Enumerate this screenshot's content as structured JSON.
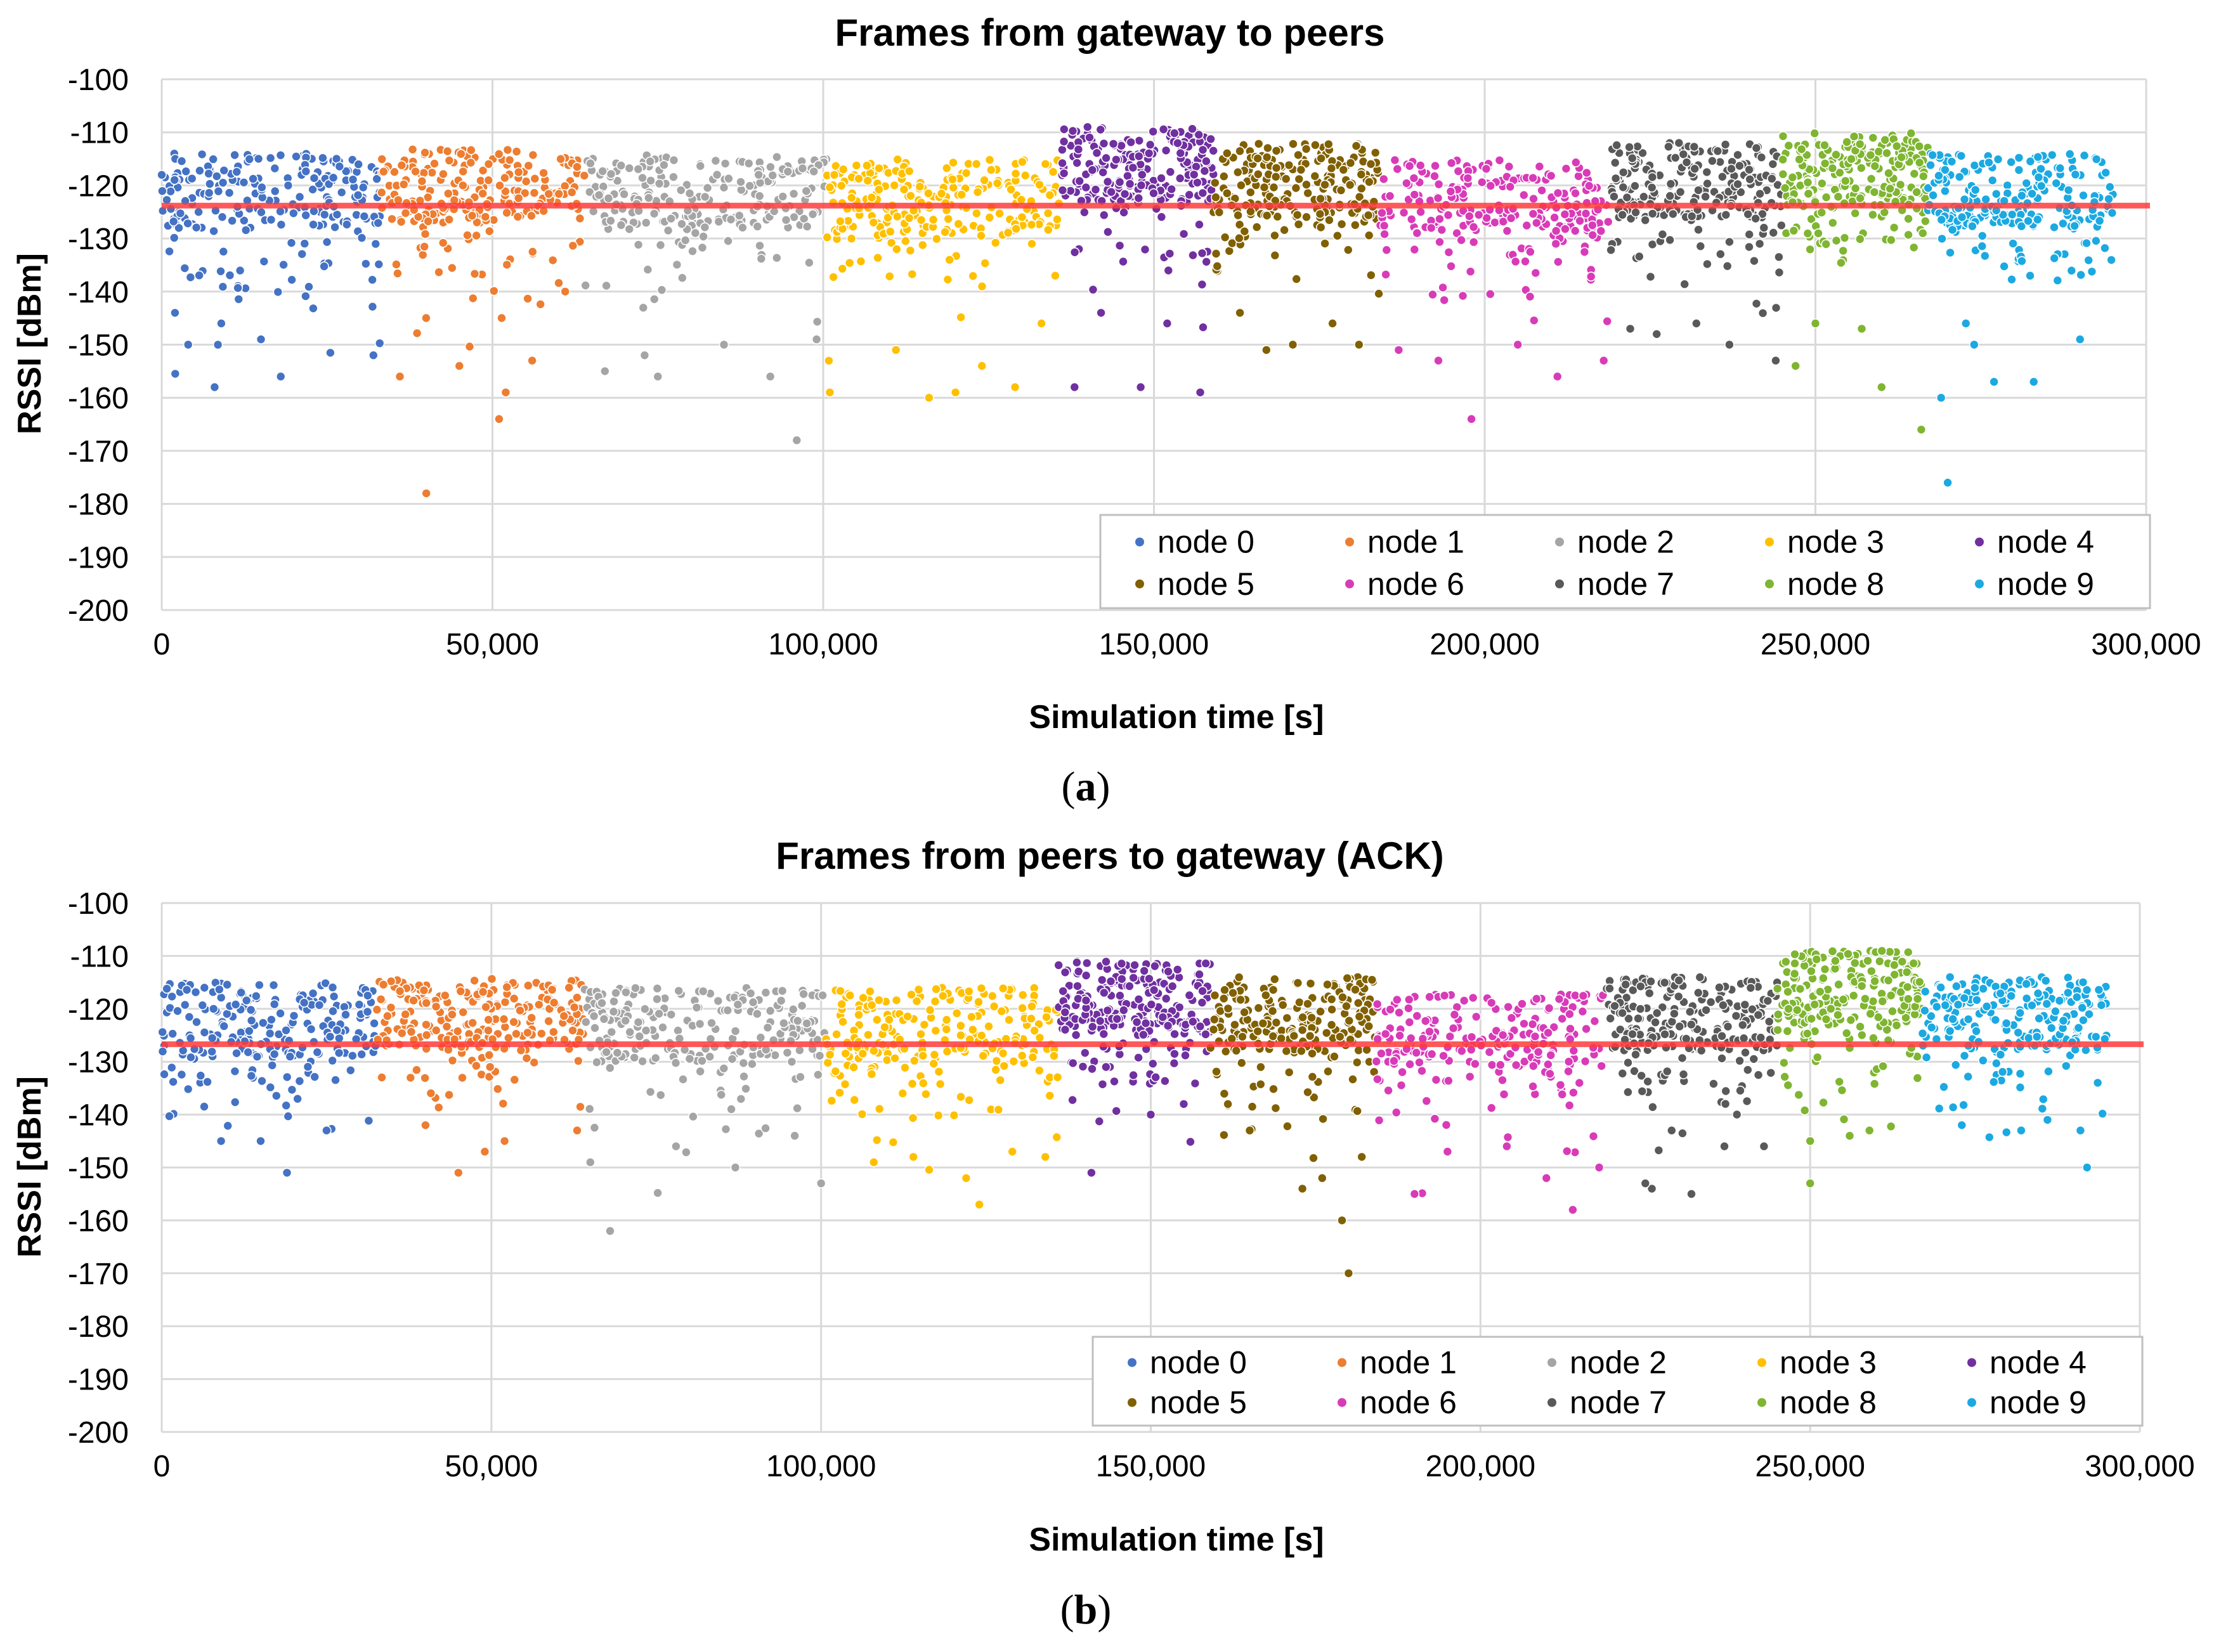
{
  "chart_data": [
    {
      "type": "scatter",
      "title": "Frames from gateway to peers",
      "xlabel": "Simulation time [s]",
      "ylabel": "RSSI [dBm]",
      "xlim": [
        0,
        300000
      ],
      "ylim": [
        -200,
        -100
      ],
      "xticks": [
        0,
        50000,
        100000,
        150000,
        200000,
        250000,
        300000
      ],
      "xtick_labels": [
        "0",
        "50,000",
        "100,000",
        "150,000",
        "200,000",
        "250,000",
        "300,000"
      ],
      "yticks": [
        -100,
        -110,
        -120,
        -130,
        -140,
        -150,
        -160,
        -170,
        -180,
        -190,
        -200
      ],
      "ytick_labels": [
        "-100",
        "-110",
        "-120",
        "-130",
        "-140",
        "-150",
        "-160",
        "-170",
        "-180",
        "-190",
        "-200"
      ],
      "grid": true,
      "legend_position": "bottom-right",
      "reference_line": {
        "y": -123.8,
        "color": "#ff3b3b"
      },
      "caption": "(a)",
      "caption_letter": "a",
      "series": [
        {
          "name": "node 0",
          "color": "#4472c4",
          "x_range": [
            0,
            33000
          ],
          "y_center": -121,
          "outliers": [
            [
              8000,
              -158
            ],
            [
              18000,
              -156
            ],
            [
              32000,
              -152
            ],
            [
              4000,
              -150
            ],
            [
              15000,
              -149
            ],
            [
              9000,
              -146
            ],
            [
              2000,
              -144
            ]
          ]
        },
        {
          "name": "node 1",
          "color": "#ed7d31",
          "x_range": [
            33000,
            64000
          ],
          "y_center": -120,
          "outliers": [
            [
              40000,
              -178
            ],
            [
              51000,
              -164
            ],
            [
              52000,
              -159
            ],
            [
              36000,
              -156
            ],
            [
              45000,
              -154
            ],
            [
              56000,
              -153
            ],
            [
              61000,
              -140
            ]
          ]
        },
        {
          "name": "node 2",
          "color": "#a5a5a5",
          "x_range": [
            64000,
            100500
          ],
          "y_center": -121,
          "outliers": [
            [
              96000,
              -168
            ],
            [
              67000,
              -155
            ],
            [
              75000,
              -156
            ],
            [
              92000,
              -156
            ],
            [
              73000,
              -152
            ],
            [
              85000,
              -150
            ],
            [
              99000,
              -149
            ]
          ]
        },
        {
          "name": "node 3",
          "color": "#ffc000",
          "x_range": [
            100500,
            136000
          ],
          "y_center": -122,
          "outliers": [
            [
              116000,
              -160
            ],
            [
              101000,
              -159
            ],
            [
              120000,
              -159
            ],
            [
              129000,
              -158
            ],
            [
              111000,
              -151
            ],
            [
              124000,
              -154
            ],
            [
              133000,
              -146
            ]
          ]
        },
        {
          "name": "node 4",
          "color": "#7030a0",
          "x_range": [
            136000,
            159000
          ],
          "y_center": -116,
          "outliers": [
            [
              157000,
              -159
            ],
            [
              138000,
              -158
            ],
            [
              148000,
              -158
            ],
            [
              152000,
              -146
            ],
            [
              142000,
              -144
            ]
          ]
        },
        {
          "name": "node 5",
          "color": "#806000",
          "x_range": [
            159000,
            184000
          ],
          "y_center": -119,
          "outliers": [
            [
              167000,
              -151
            ],
            [
              171000,
              -150
            ],
            [
              181000,
              -150
            ],
            [
              177000,
              -146
            ],
            [
              163000,
              -144
            ]
          ]
        },
        {
          "name": "node 6",
          "color": "#d83bb8",
          "x_range": [
            184000,
            219000
          ],
          "y_center": -122,
          "outliers": [
            [
              198000,
              -164
            ],
            [
              211000,
              -156
            ],
            [
              193000,
              -153
            ],
            [
              218000,
              -153
            ],
            [
              205000,
              -150
            ],
            [
              187000,
              -151
            ]
          ]
        },
        {
          "name": "node 7",
          "color": "#595959",
          "x_range": [
            219000,
            245000
          ],
          "y_center": -119,
          "outliers": [
            [
              244000,
              -153
            ],
            [
              226000,
              -148
            ],
            [
              237000,
              -150
            ],
            [
              232000,
              -146
            ],
            [
              222000,
              -147
            ]
          ]
        },
        {
          "name": "node 8",
          "color": "#7fb531",
          "x_range": [
            245000,
            267000
          ],
          "y_center": -117,
          "outliers": [
            [
              266000,
              -166
            ],
            [
              260000,
              -158
            ],
            [
              247000,
              -154
            ],
            [
              250000,
              -146
            ],
            [
              257000,
              -147
            ]
          ]
        },
        {
          "name": "node 9",
          "color": "#1ca9e1",
          "x_range": [
            267000,
            295000
          ],
          "y_center": -121,
          "outliers": [
            [
              270000,
              -176
            ],
            [
              269000,
              -160
            ],
            [
              277000,
              -157
            ],
            [
              283000,
              -157
            ],
            [
              290000,
              -149
            ],
            [
              274000,
              -150
            ]
          ]
        }
      ]
    },
    {
      "type": "scatter",
      "title": "Frames from peers to gateway (ACK)",
      "xlabel": "Simulation time [s]",
      "ylabel": "RSSI [dBm]",
      "xlim": [
        0,
        300000
      ],
      "ylim": [
        -200,
        -100
      ],
      "xticks": [
        0,
        50000,
        100000,
        150000,
        200000,
        250000,
        300000
      ],
      "xtick_labels": [
        "0",
        "50,000",
        "100,000",
        "150,000",
        "200,000",
        "250,000",
        "300,000"
      ],
      "yticks": [
        -100,
        -110,
        -120,
        -130,
        -140,
        -150,
        -160,
        -170,
        -180,
        -190,
        -200
      ],
      "ytick_labels": [
        "-100",
        "-110",
        "-120",
        "-130",
        "-140",
        "-150",
        "-160",
        "-170",
        "-180",
        "-190",
        "-200"
      ],
      "grid": true,
      "legend_position": "bottom-right",
      "reference_line": {
        "y": -126.7,
        "color": "#ff3b3b"
      },
      "caption": "(b)",
      "caption_letter": "b",
      "series": [
        {
          "name": "node 0",
          "color": "#4472c4",
          "x_range": [
            0,
            32500
          ],
          "y_center": -122,
          "outliers": [
            [
              19000,
              -151
            ],
            [
              9000,
              -145
            ],
            [
              15000,
              -145
            ],
            [
              25000,
              -143
            ]
          ]
        },
        {
          "name": "node 1",
          "color": "#ed7d31",
          "x_range": [
            32500,
            64000
          ],
          "y_center": -121,
          "outliers": [
            [
              45000,
              -151
            ],
            [
              49000,
              -147
            ],
            [
              52000,
              -145
            ],
            [
              63000,
              -143
            ],
            [
              40000,
              -142
            ]
          ]
        },
        {
          "name": "node 2",
          "color": "#a5a5a5",
          "x_range": [
            64000,
            100500
          ],
          "y_center": -123,
          "outliers": [
            [
              68000,
              -162
            ],
            [
              65000,
              -149
            ],
            [
              87000,
              -150
            ],
            [
              100000,
              -153
            ],
            [
              78000,
              -146
            ],
            [
              96000,
              -144
            ]
          ]
        },
        {
          "name": "node 3",
          "color": "#ffc000",
          "x_range": [
            100500,
            136000
          ],
          "y_center": -123,
          "outliers": [
            [
              124000,
              -157
            ],
            [
              122000,
              -152
            ],
            [
              108000,
              -149
            ],
            [
              114000,
              -148
            ],
            [
              134000,
              -148
            ],
            [
              129000,
              -147
            ]
          ]
        },
        {
          "name": "node 4",
          "color": "#7030a0",
          "x_range": [
            136000,
            159000
          ],
          "y_center": -118,
          "outliers": [
            [
              141000,
              -151
            ],
            [
              150000,
              -140
            ],
            [
              155000,
              -138
            ]
          ]
        },
        {
          "name": "node 5",
          "color": "#806000",
          "x_range": [
            159000,
            184000
          ],
          "y_center": -121,
          "outliers": [
            [
              180000,
              -170
            ],
            [
              179000,
              -160
            ],
            [
              173000,
              -154
            ],
            [
              176000,
              -152
            ],
            [
              182000,
              -148
            ],
            [
              165000,
              -143
            ]
          ]
        },
        {
          "name": "node 6",
          "color": "#d83bb8",
          "x_range": [
            184000,
            219000
          ],
          "y_center": -124,
          "outliers": [
            [
              214000,
              -158
            ],
            [
              190000,
              -155
            ],
            [
              210000,
              -152
            ],
            [
              218000,
              -150
            ],
            [
              195000,
              -147
            ],
            [
              204000,
              -146
            ]
          ]
        },
        {
          "name": "node 7",
          "color": "#595959",
          "x_range": [
            219000,
            245000
          ],
          "y_center": -121,
          "outliers": [
            [
              232000,
              -155
            ],
            [
              226000,
              -154
            ],
            [
              225000,
              -153
            ],
            [
              237000,
              -146
            ],
            [
              243000,
              -146
            ],
            [
              229000,
              -143
            ]
          ]
        },
        {
          "name": "node 8",
          "color": "#7fb531",
          "x_range": [
            245000,
            267000
          ],
          "y_center": -116,
          "outliers": [
            [
              250000,
              -153
            ],
            [
              250000,
              -145
            ],
            [
              256000,
              -144
            ],
            [
              259000,
              -143
            ]
          ]
        },
        {
          "name": "node 9",
          "color": "#1ca9e1",
          "x_range": [
            267000,
            295000
          ],
          "y_center": -121,
          "outliers": [
            [
              292000,
              -150
            ],
            [
              291000,
              -143
            ],
            [
              282000,
              -143
            ],
            [
              273000,
              -142
            ],
            [
              286000,
              -141
            ]
          ]
        }
      ]
    }
  ]
}
